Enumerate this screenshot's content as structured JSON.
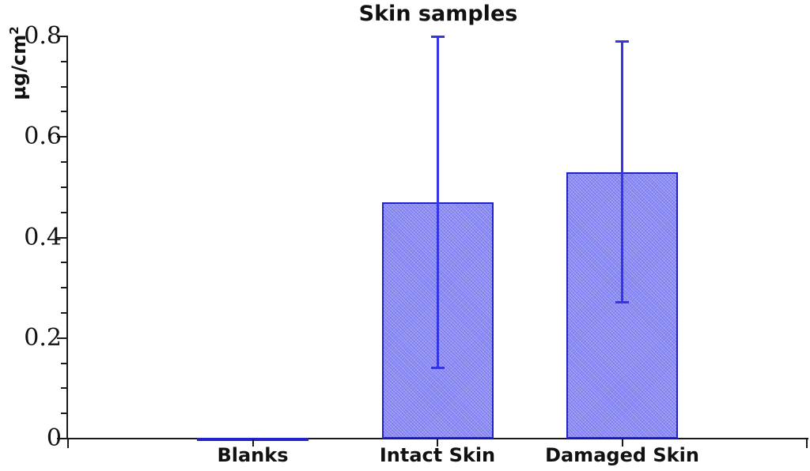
{
  "chart_data": {
    "type": "bar",
    "title": "Skin samples",
    "ylabel_base": "µg/cm",
    "ylabel_sup": "2",
    "xlabel": "",
    "categories": [
      "Blanks",
      "Intact Skin",
      "Damaged Skin"
    ],
    "values": [
      0.002,
      0.47,
      0.53
    ],
    "error_upper": [
      null,
      0.8,
      0.79
    ],
    "error_lower": [
      null,
      0.14,
      0.27
    ],
    "ylim": [
      0,
      0.8
    ],
    "y_major_ticks": {
      "values": [
        0,
        0.2,
        0.4,
        0.6,
        0.8
      ],
      "labels": [
        "0",
        "0.2",
        "0.4",
        "0.6",
        "0.8"
      ]
    },
    "y_minor_step": 0.05,
    "grid": "off",
    "legend": "none",
    "colors": {
      "bar_fill": "#7d7df0",
      "bar_border": "#2222cc",
      "error_bar": "#3535e6",
      "axis": "#1a1a1a",
      "text": "#111111",
      "background": "#ffffff"
    }
  }
}
